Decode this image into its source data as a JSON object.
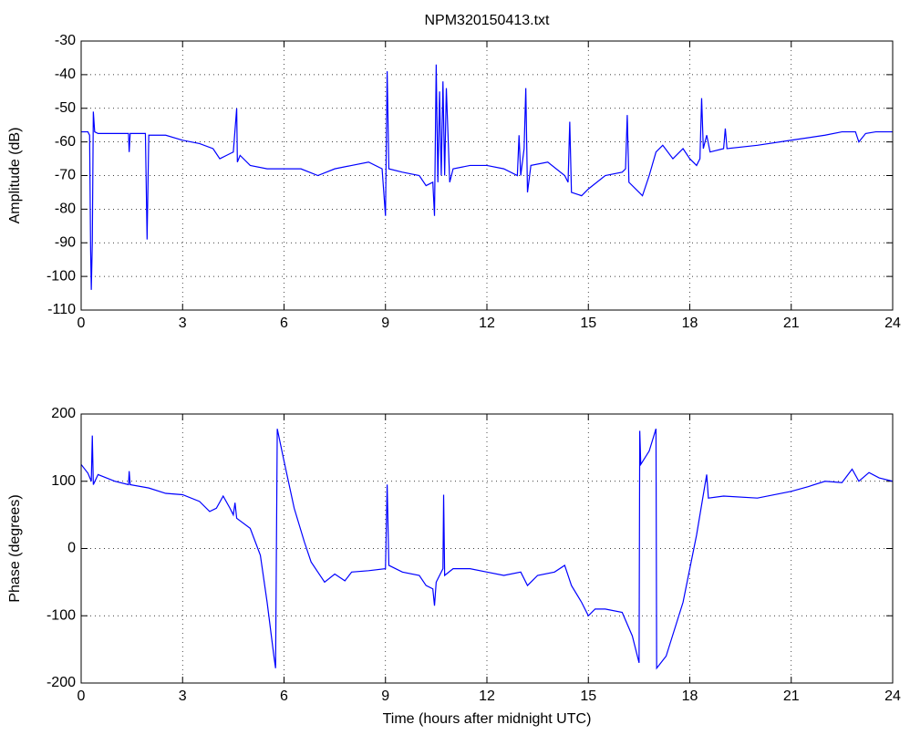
{
  "chart_data": [
    {
      "type": "line",
      "title": "NPM320150413.txt",
      "ylabel": "Amplitude (dB)",
      "color": "#0000ff",
      "grid": true,
      "xlim": [
        0,
        24
      ],
      "xticks": [
        0,
        3,
        6,
        9,
        12,
        15,
        18,
        21,
        24
      ],
      "ylim": [
        -110,
        -30
      ],
      "yticks": [
        -110,
        -100,
        -90,
        -80,
        -70,
        -60,
        -50,
        -40,
        -30
      ],
      "x": [
        0,
        0.2,
        0.25,
        0.28,
        0.3,
        0.33,
        0.36,
        0.4,
        0.5,
        1.0,
        1.4,
        1.42,
        1.45,
        1.9,
        1.95,
        2.0,
        2.5,
        3.0,
        3.5,
        3.9,
        4.1,
        4.3,
        4.5,
        4.6,
        4.62,
        4.7,
        5.0,
        5.5,
        6.0,
        6.5,
        7.0,
        7.5,
        8.0,
        8.5,
        8.9,
        9.0,
        9.05,
        9.1,
        9.5,
        10.0,
        10.2,
        10.4,
        10.45,
        10.5,
        10.55,
        10.6,
        10.65,
        10.7,
        10.75,
        10.8,
        10.9,
        11.0,
        11.5,
        12.0,
        12.5,
        12.9,
        12.95,
        13.0,
        13.1,
        13.15,
        13.2,
        13.3,
        13.8,
        14.3,
        14.4,
        14.45,
        14.5,
        14.8,
        15.0,
        15.5,
        16.0,
        16.1,
        16.15,
        16.2,
        16.5,
        16.6,
        16.8,
        17.0,
        17.2,
        17.5,
        17.8,
        18.0,
        18.2,
        18.3,
        18.35,
        18.4,
        18.5,
        18.6,
        19.0,
        19.05,
        19.1,
        20.0,
        21.0,
        22.0,
        22.5,
        22.9,
        23.0,
        23.2,
        23.5,
        24.0
      ],
      "values": [
        -57,
        -57,
        -58,
        -92,
        -104,
        -90,
        -51,
        -57,
        -57.5,
        -57.5,
        -57.5,
        -63,
        -57.5,
        -57.5,
        -89,
        -58,
        -58,
        -59.5,
        -60.5,
        -62,
        -65,
        -64,
        -63,
        -50,
        -66,
        -64,
        -67,
        -68,
        -68,
        -68,
        -70,
        -68,
        -67,
        -66,
        -68,
        -82,
        -39,
        -68,
        -69,
        -70,
        -73,
        -72,
        -82,
        -37,
        -72,
        -45,
        -70,
        -42,
        -70,
        -44,
        -72,
        -68,
        -67,
        -67,
        -68,
        -70,
        -58,
        -70,
        -62,
        -44,
        -75,
        -67,
        -66,
        -70,
        -72,
        -54,
        -75,
        -76,
        -74,
        -70,
        -69,
        -68,
        -52,
        -72,
        -75,
        -76,
        -70,
        -63,
        -61,
        -65,
        -62,
        -65,
        -67,
        -65,
        -47,
        -62,
        -58,
        -63,
        -62,
        -56,
        -62,
        -61,
        -59.5,
        -58,
        -57,
        -57,
        -60,
        -57.5,
        -57,
        -57
      ]
    },
    {
      "type": "line",
      "ylabel": "Phase (degrees)",
      "xlabel": "Time (hours after midnight UTC)",
      "color": "#0000ff",
      "grid": true,
      "xlim": [
        0,
        24
      ],
      "xticks": [
        0,
        3,
        6,
        9,
        12,
        15,
        18,
        21,
        24
      ],
      "ylim": [
        -200,
        200
      ],
      "yticks": [
        -200,
        -100,
        0,
        100,
        200
      ],
      "x": [
        0,
        0.2,
        0.3,
        0.33,
        0.36,
        0.5,
        1.0,
        1.4,
        1.42,
        1.45,
        2.0,
        2.5,
        3.0,
        3.5,
        3.8,
        4.0,
        4.2,
        4.4,
        4.5,
        4.55,
        4.6,
        5.0,
        5.3,
        5.5,
        5.7,
        5.75,
        5.8,
        6.0,
        6.3,
        6.6,
        6.8,
        7.0,
        7.2,
        7.5,
        7.8,
        8.0,
        8.5,
        9.0,
        9.05,
        9.1,
        9.5,
        10.0,
        10.2,
        10.4,
        10.45,
        10.5,
        10.7,
        10.72,
        10.75,
        11.0,
        11.5,
        12.0,
        12.5,
        13.0,
        13.2,
        13.5,
        14.0,
        14.3,
        14.5,
        14.8,
        15.0,
        15.2,
        15.5,
        16.0,
        16.3,
        16.5,
        16.52,
        16.55,
        16.8,
        17.0,
        17.02,
        17.3,
        17.8,
        18.2,
        18.4,
        18.5,
        18.55,
        19.0,
        20.0,
        21.0,
        21.5,
        22.0,
        22.5,
        22.8,
        23.0,
        23.3,
        23.6,
        24.0
      ],
      "values": [
        125,
        112,
        100,
        168,
        95,
        110,
        100,
        95,
        115,
        95,
        90,
        82,
        80,
        70,
        55,
        60,
        78,
        60,
        50,
        68,
        45,
        30,
        -10,
        -80,
        -160,
        -178,
        178,
        130,
        60,
        10,
        -20,
        -35,
        -50,
        -38,
        -48,
        -35,
        -33,
        -30,
        95,
        -25,
        -35,
        -40,
        -55,
        -60,
        -85,
        -50,
        -30,
        80,
        -40,
        -30,
        -30,
        -35,
        -40,
        -35,
        -55,
        -40,
        -35,
        -25,
        -55,
        -80,
        -100,
        -90,
        -90,
        -95,
        -130,
        -170,
        175,
        125,
        145,
        178,
        -178,
        -160,
        -80,
        20,
        80,
        110,
        75,
        78,
        75,
        85,
        92,
        100,
        98,
        118,
        100,
        113,
        105,
        100
      ]
    }
  ]
}
